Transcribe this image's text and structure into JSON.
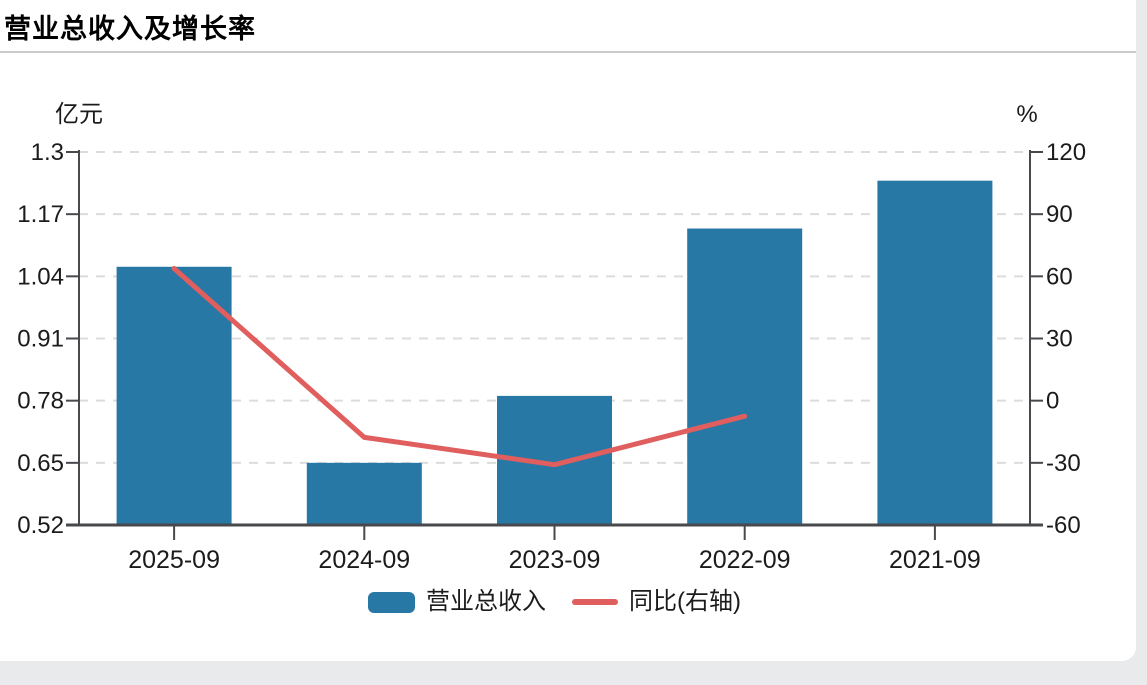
{
  "page": {
    "background": "#e8eaec",
    "card_background": "#ffffff",
    "divider_color": "#cbcbcb",
    "axis_color": "#47494c",
    "grid_color": "#dcdcdc",
    "text_color": "#1b1b1b"
  },
  "chart_data": {
    "type": "bar-line-combo",
    "title": "营业总收入及增长率",
    "categories": [
      "2025-09",
      "2024-09",
      "2023-09",
      "2022-09",
      "2021-09"
    ],
    "series": [
      {
        "name": "营业总收入",
        "type": "bar",
        "yaxis": "left",
        "color": "#2878a6",
        "values": [
          1.06,
          0.65,
          0.79,
          1.14,
          1.24
        ]
      },
      {
        "name": "同比(右轴)",
        "type": "line",
        "yaxis": "right",
        "color": "#e05e5e",
        "values": [
          63.8,
          -17.7,
          -30.9,
          -7.5,
          null
        ]
      }
    ],
    "left_axis": {
      "unit": "亿元",
      "min": 0.52,
      "max": 1.3,
      "ticks": [
        "1.3",
        "1.17",
        "1.04",
        "0.91",
        "0.78",
        "0.65",
        "0.52"
      ]
    },
    "right_axis": {
      "unit": "%",
      "min": -60,
      "max": 120,
      "ticks": [
        "120",
        "90",
        "60",
        "30",
        "0",
        "-30",
        "-60"
      ]
    },
    "grid": {
      "style": "dashed",
      "shown": true
    },
    "legend_position": "bottom"
  },
  "legend": {
    "items": [
      {
        "label": "营业总收入",
        "swatch": "bar",
        "color": "#2878a6"
      },
      {
        "label": "同比(右轴)",
        "swatch": "line",
        "color": "#e05e5e"
      }
    ]
  }
}
